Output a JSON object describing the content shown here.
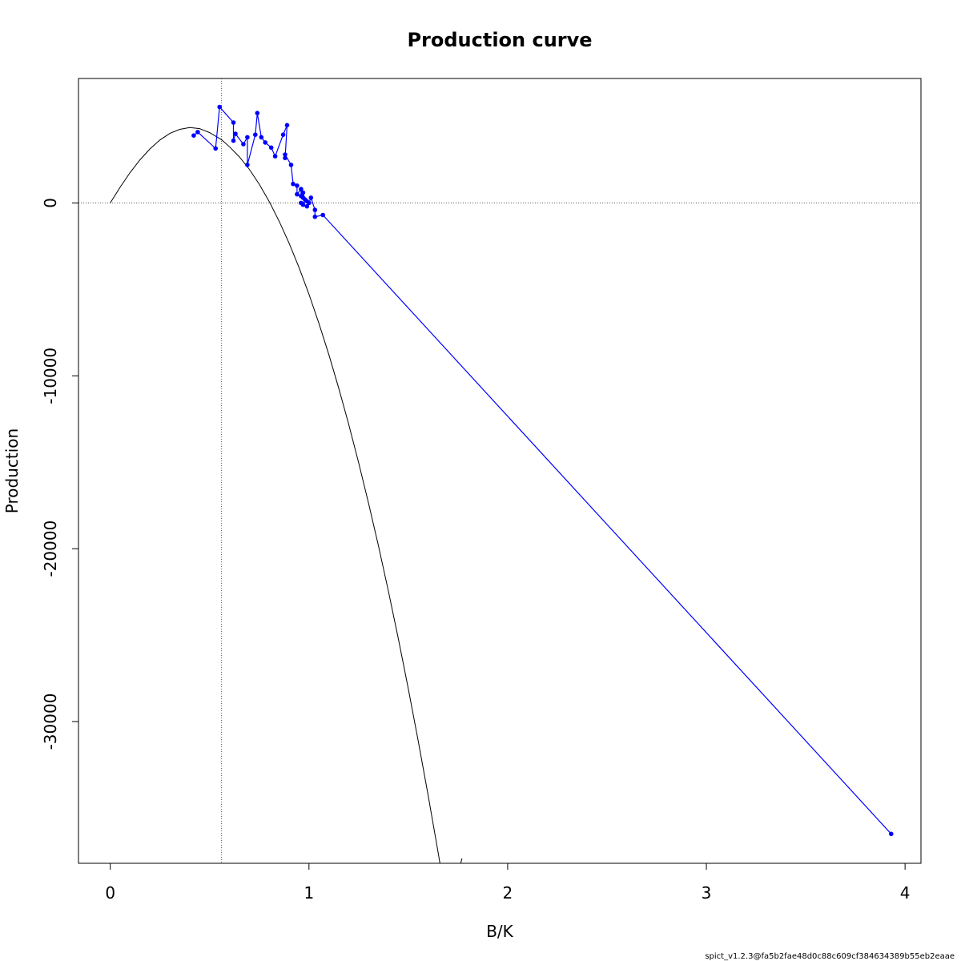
{
  "chart_data": {
    "type": "scatter",
    "title": "Production curve",
    "xlabel": "B/K",
    "ylabel": "Production",
    "xlim": [
      -0.16,
      4.08
    ],
    "ylim": [
      -38200,
      7200
    ],
    "x_ticks": [
      0,
      1,
      2,
      3,
      4
    ],
    "y_ticks": [
      0,
      -10000,
      -20000,
      -30000
    ],
    "x_tick_labels": [
      "0",
      "1",
      "2",
      "3",
      "4"
    ],
    "y_tick_labels": [
      "0",
      "-10000",
      "-20000",
      "-30000"
    ],
    "reference_lines": {
      "bmsy_over_k": 0.56,
      "zero_production": 0
    },
    "grid": false,
    "legend": "none",
    "series": [
      {
        "type": "line",
        "color": "#000000",
        "x": [
          0.0,
          0.05,
          0.1,
          0.15,
          0.2,
          0.25,
          0.3,
          0.35,
          0.4,
          0.45,
          0.5,
          0.56,
          0.6,
          0.65,
          0.7,
          0.75,
          0.8,
          0.85,
          0.9,
          0.95,
          1.0,
          1.05,
          1.1,
          1.15,
          1.2,
          1.25,
          1.3,
          1.35,
          1.4,
          1.45,
          1.5,
          1.55,
          1.6,
          1.65,
          1.7,
          1.77
        ],
        "y": [
          0,
          920,
          1760,
          2500,
          3130,
          3640,
          4020,
          4260,
          4360,
          4300,
          4070,
          3660,
          3250,
          2660,
          1940,
          1080,
          80,
          -1060,
          -2330,
          -3740,
          -5280,
          -6960,
          -8770,
          -10720,
          -12800,
          -15020,
          -17370,
          -19860,
          -22480,
          -25230,
          -28120,
          -31140,
          -34290,
          -37580,
          -41000,
          -37920
        ]
      },
      {
        "type": "line+points",
        "color": "#0000ff",
        "points": [
          [
            0.42,
            3900
          ],
          [
            0.44,
            4100
          ],
          [
            0.53,
            3150
          ],
          [
            0.55,
            5550
          ],
          [
            0.62,
            4650
          ],
          [
            0.62,
            3600
          ],
          [
            0.63,
            4000
          ],
          [
            0.67,
            3400
          ],
          [
            0.69,
            3800
          ],
          [
            0.69,
            2200
          ],
          [
            0.73,
            3950
          ],
          [
            0.74,
            5200
          ],
          [
            0.76,
            3800
          ],
          [
            0.78,
            3500
          ],
          [
            0.81,
            3200
          ],
          [
            0.83,
            2700
          ],
          [
            0.87,
            3950
          ],
          [
            0.89,
            4500
          ],
          [
            0.88,
            2600
          ],
          [
            0.88,
            2800
          ],
          [
            0.91,
            2200
          ],
          [
            0.92,
            1100
          ],
          [
            0.94,
            1000
          ],
          [
            0.94,
            500
          ],
          [
            0.96,
            800
          ],
          [
            0.96,
            400
          ],
          [
            0.97,
            300
          ],
          [
            0.97,
            600
          ],
          [
            0.98,
            200
          ],
          [
            0.99,
            100
          ],
          [
            0.96,
            0
          ],
          [
            0.97,
            -100
          ],
          [
            0.99,
            -200
          ],
          [
            1.0,
            0
          ],
          [
            1.01,
            300
          ],
          [
            1.03,
            -400
          ],
          [
            1.03,
            -800
          ],
          [
            1.07,
            -700
          ],
          [
            3.93,
            -36500
          ]
        ]
      }
    ],
    "footer": "spict_v1.2.3@fa5b2fae48d0c88c609cf384634389b55eb2eaae"
  }
}
